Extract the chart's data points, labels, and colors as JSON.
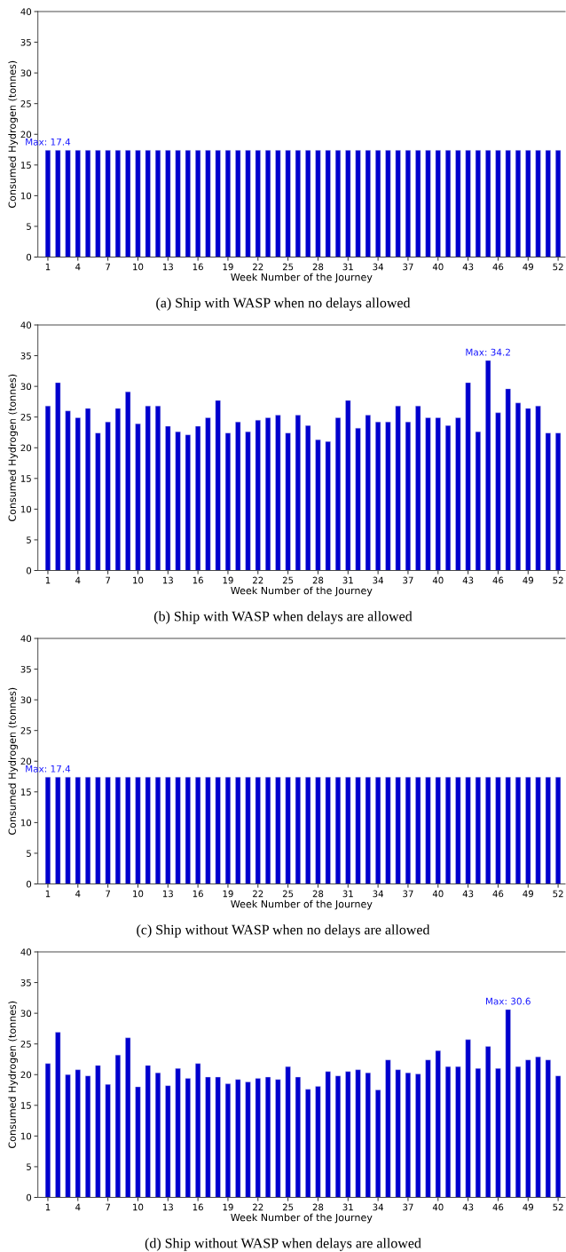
{
  "chart_data": [
    {
      "type": "bar",
      "x": [
        1,
        2,
        3,
        4,
        5,
        6,
        7,
        8,
        9,
        10,
        11,
        12,
        13,
        14,
        15,
        16,
        17,
        18,
        19,
        20,
        21,
        22,
        23,
        24,
        25,
        26,
        27,
        28,
        29,
        30,
        31,
        32,
        33,
        34,
        35,
        36,
        37,
        38,
        39,
        40,
        41,
        42,
        43,
        44,
        45,
        46,
        47,
        48,
        49,
        50,
        51,
        52
      ],
      "values": [
        17.4,
        17.4,
        17.4,
        17.4,
        17.4,
        17.4,
        17.4,
        17.4,
        17.4,
        17.4,
        17.4,
        17.4,
        17.4,
        17.4,
        17.4,
        17.4,
        17.4,
        17.4,
        17.4,
        17.4,
        17.4,
        17.4,
        17.4,
        17.4,
        17.4,
        17.4,
        17.4,
        17.4,
        17.4,
        17.4,
        17.4,
        17.4,
        17.4,
        17.4,
        17.4,
        17.4,
        17.4,
        17.4,
        17.4,
        17.4,
        17.4,
        17.4,
        17.4,
        17.4,
        17.4,
        17.4,
        17.4,
        17.4,
        17.4,
        17.4,
        17.4,
        17.4
      ],
      "color": "#0000cd",
      "xlabel": "Week Number of the Journey",
      "ylabel": "Consumed Hydrogen (tonnes)",
      "xlim": [
        0,
        52.7
      ],
      "xticks": [
        1,
        4,
        7,
        10,
        13,
        16,
        19,
        22,
        25,
        28,
        31,
        34,
        37,
        40,
        43,
        46,
        49,
        52
      ],
      "ylim": [
        0,
        40
      ],
      "yticks": [
        0,
        5,
        10,
        15,
        20,
        25,
        30,
        35,
        40
      ],
      "annotations": [
        {
          "text": "Max: 17.4",
          "x": 1,
          "y": 17.4
        },
        "(a) Ship with WASP when no delays allowed"
      ]
    },
    {
      "type": "bar",
      "x": [
        1,
        2,
        3,
        4,
        5,
        6,
        7,
        8,
        9,
        10,
        11,
        12,
        13,
        14,
        15,
        16,
        17,
        18,
        19,
        20,
        21,
        22,
        23,
        24,
        25,
        26,
        27,
        28,
        29,
        30,
        31,
        32,
        33,
        34,
        35,
        36,
        37,
        38,
        39,
        40,
        41,
        42,
        43,
        44,
        45,
        46,
        47,
        48,
        49,
        50,
        51,
        52
      ],
      "values": [
        26.8,
        30.6,
        26.0,
        24.9,
        26.4,
        22.4,
        24.2,
        26.4,
        29.1,
        23.9,
        26.8,
        26.8,
        23.5,
        22.6,
        22.1,
        23.5,
        24.9,
        27.7,
        22.4,
        24.2,
        22.6,
        24.5,
        24.9,
        25.3,
        22.4,
        25.3,
        23.6,
        21.3,
        21.0,
        24.9,
        27.7,
        23.2,
        25.3,
        24.2,
        24.2,
        26.8,
        24.2,
        26.8,
        24.9,
        24.9,
        23.6,
        24.9,
        30.6,
        22.6,
        34.2,
        25.7,
        29.6,
        27.3,
        26.4,
        26.8,
        22.4,
        22.4
      ],
      "color": "#0000cd",
      "xlabel": "Week Number of the Journey",
      "ylabel": "Consumed Hydrogen (tonnes)",
      "xlim": [
        0,
        52.7
      ],
      "xticks": [
        1,
        4,
        7,
        10,
        13,
        16,
        19,
        22,
        25,
        28,
        31,
        34,
        37,
        40,
        43,
        46,
        49,
        52
      ],
      "ylim": [
        0,
        40
      ],
      "yticks": [
        0,
        5,
        10,
        15,
        20,
        25,
        30,
        35,
        40
      ],
      "annotations": [
        {
          "text": "Max: 34.2",
          "x": 45,
          "y": 34.2
        },
        "(b) Ship with WASP when delays are allowed"
      ]
    },
    {
      "type": "bar",
      "x": [
        1,
        2,
        3,
        4,
        5,
        6,
        7,
        8,
        9,
        10,
        11,
        12,
        13,
        14,
        15,
        16,
        17,
        18,
        19,
        20,
        21,
        22,
        23,
        24,
        25,
        26,
        27,
        28,
        29,
        30,
        31,
        32,
        33,
        34,
        35,
        36,
        37,
        38,
        39,
        40,
        41,
        42,
        43,
        44,
        45,
        46,
        47,
        48,
        49,
        50,
        51,
        52
      ],
      "values": [
        17.4,
        17.4,
        17.4,
        17.4,
        17.4,
        17.4,
        17.4,
        17.4,
        17.4,
        17.4,
        17.4,
        17.4,
        17.4,
        17.4,
        17.4,
        17.4,
        17.4,
        17.4,
        17.4,
        17.4,
        17.4,
        17.4,
        17.4,
        17.4,
        17.4,
        17.4,
        17.4,
        17.4,
        17.4,
        17.4,
        17.4,
        17.4,
        17.4,
        17.4,
        17.4,
        17.4,
        17.4,
        17.4,
        17.4,
        17.4,
        17.4,
        17.4,
        17.4,
        17.4,
        17.4,
        17.4,
        17.4,
        17.4,
        17.4,
        17.4,
        17.4,
        17.4
      ],
      "color": "#0000cd",
      "xlabel": "Week Number of the Journey",
      "ylabel": "Consumed Hydrogen (tonnes)",
      "xlim": [
        0,
        52.7
      ],
      "xticks": [
        1,
        4,
        7,
        10,
        13,
        16,
        19,
        22,
        25,
        28,
        31,
        34,
        37,
        40,
        43,
        46,
        49,
        52
      ],
      "ylim": [
        0,
        40
      ],
      "yticks": [
        0,
        5,
        10,
        15,
        20,
        25,
        30,
        35,
        40
      ],
      "annotations": [
        {
          "text": "Max: 17.4",
          "x": 1,
          "y": 17.4
        },
        "(c) Ship without WASP when no delays are allowed"
      ]
    },
    {
      "type": "bar",
      "x": [
        1,
        2,
        3,
        4,
        5,
        6,
        7,
        8,
        9,
        10,
        11,
        12,
        13,
        14,
        15,
        16,
        17,
        18,
        19,
        20,
        21,
        22,
        23,
        24,
        25,
        26,
        27,
        28,
        29,
        30,
        31,
        32,
        33,
        34,
        35,
        36,
        37,
        38,
        39,
        40,
        41,
        42,
        43,
        44,
        45,
        46,
        47,
        48,
        49,
        50,
        51,
        52
      ],
      "values": [
        21.8,
        26.9,
        20.0,
        20.8,
        19.8,
        21.5,
        18.4,
        23.2,
        26.0,
        18.0,
        21.5,
        20.3,
        18.2,
        21.0,
        19.4,
        21.8,
        19.6,
        19.6,
        18.5,
        19.2,
        18.8,
        19.4,
        19.6,
        19.2,
        21.3,
        19.6,
        17.6,
        18.1,
        20.5,
        19.8,
        20.5,
        20.8,
        20.3,
        17.5,
        22.4,
        20.8,
        20.3,
        20.1,
        22.4,
        23.9,
        21.3,
        21.3,
        25.7,
        21.0,
        24.6,
        21.0,
        30.6,
        21.3,
        22.4,
        22.9,
        22.4,
        19.8
      ],
      "color": "#0000cd",
      "xlabel": "Week Number of the Journey",
      "ylabel": "Consumed Hydrogen (tonnes)",
      "xlim": [
        0,
        52.7
      ],
      "xticks": [
        1,
        4,
        7,
        10,
        13,
        16,
        19,
        22,
        25,
        28,
        31,
        34,
        37,
        40,
        43,
        46,
        49,
        52
      ],
      "ylim": [
        0,
        40
      ],
      "yticks": [
        0,
        5,
        10,
        15,
        20,
        25,
        30,
        35,
        40
      ],
      "annotations": [
        {
          "text": "Max: 30.6",
          "x": 47,
          "y": 30.6
        },
        "(d) Ship without WASP when delays are allowed"
      ]
    }
  ]
}
